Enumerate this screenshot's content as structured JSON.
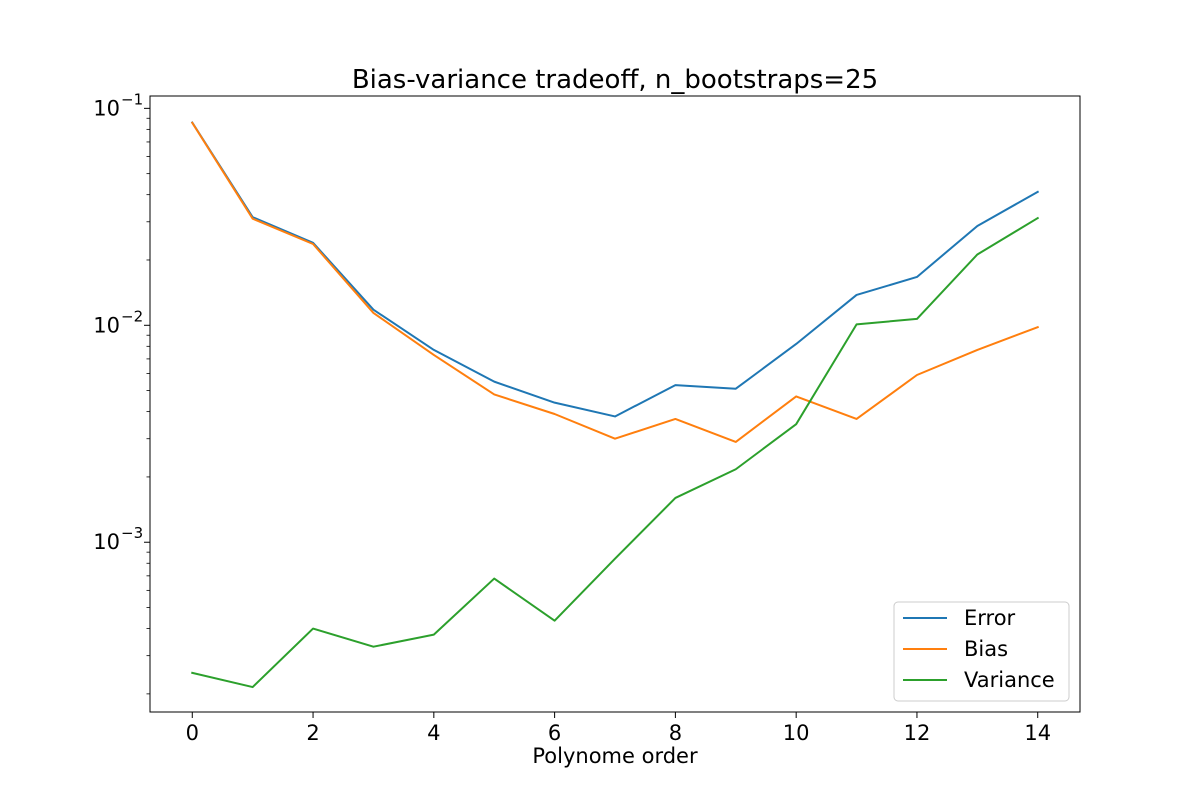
{
  "chart_data": {
    "type": "line",
    "title": "Bias-variance tradeoff, n_bootstraps=25",
    "xlabel": "Polynome order",
    "ylabel": "",
    "yscale": "log",
    "x": [
      0,
      1,
      2,
      3,
      4,
      5,
      6,
      7,
      8,
      9,
      10,
      11,
      12,
      13,
      14
    ],
    "xlim": [
      -0.7,
      14.7
    ],
    "ylim": [
      0.000165,
      0.114
    ],
    "xticks": [
      0,
      2,
      4,
      6,
      8,
      10,
      12,
      14
    ],
    "xtick_labels": [
      "0",
      "2",
      "4",
      "6",
      "8",
      "10",
      "12",
      "14"
    ],
    "yticks": [
      0.001,
      0.01,
      0.1
    ],
    "ytick_labels": [
      {
        "base": "10",
        "exp": "−3"
      },
      {
        "base": "10",
        "exp": "−2"
      },
      {
        "base": "10",
        "exp": "−1"
      }
    ],
    "grid": false,
    "legend_position": "lower right",
    "series": [
      {
        "name": "Error",
        "color": "#1f77b4",
        "values": [
          0.086,
          0.0315,
          0.024,
          0.0118,
          0.0077,
          0.0055,
          0.0044,
          0.0038,
          0.0053,
          0.0051,
          0.0082,
          0.0138,
          0.0167,
          0.0287,
          0.0412
        ]
      },
      {
        "name": "Bias",
        "color": "#ff7f0e",
        "values": [
          0.0858,
          0.031,
          0.0237,
          0.0114,
          0.0073,
          0.0048,
          0.0039,
          0.003,
          0.0037,
          0.0029,
          0.0047,
          0.0037,
          0.0059,
          0.0077,
          0.0098
        ]
      },
      {
        "name": "Variance",
        "color": "#2ca02c",
        "values": [
          0.00025,
          0.000215,
          0.0004,
          0.00033,
          0.000375,
          0.00068,
          0.000435,
          0.00084,
          0.0016,
          0.00217,
          0.0035,
          0.0101,
          0.0107,
          0.0212,
          0.0312
        ]
      }
    ]
  }
}
